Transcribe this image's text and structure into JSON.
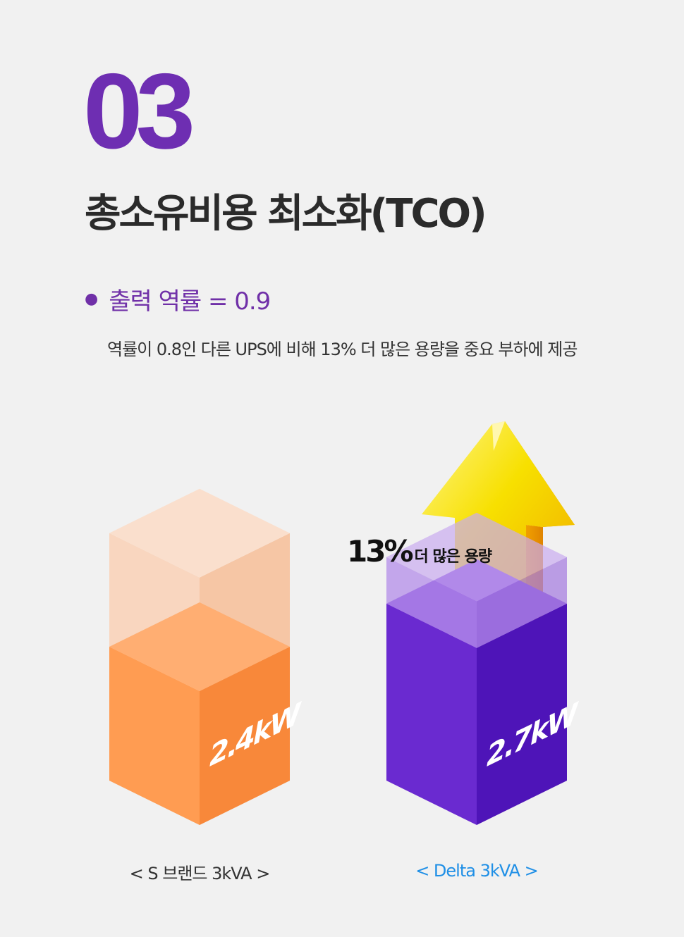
{
  "section": {
    "number": "03",
    "title": "총소유비용 최소화(TCO)"
  },
  "bullet": {
    "text": "출력 역률 = 0.9"
  },
  "description": "역률이 0.8인 다른 UPS에 비해 13% 더 많은 용량을 중요 부하에 제공",
  "callout": {
    "percent": "13%",
    "text": "더 많은 용량"
  },
  "colors": {
    "accent_purple": "#6e2eb2",
    "s_brand_orange": "#ff9a4d",
    "delta_purple": "#6a2fd0",
    "caption_blue": "#1f8fe6",
    "arrow_yellow": "#f7d400"
  },
  "chart_data": {
    "type": "bar",
    "categories": [
      "< S 브랜드 3kVA >",
      "< Delta 3kVA >"
    ],
    "values": [
      2.4,
      2.7
    ],
    "units": "kW",
    "data_labels": [
      "2.4kW",
      "2.7kW"
    ],
    "annotation": "13% 더 많은 용량",
    "title": "",
    "xlabel": "",
    "ylabel": ""
  }
}
